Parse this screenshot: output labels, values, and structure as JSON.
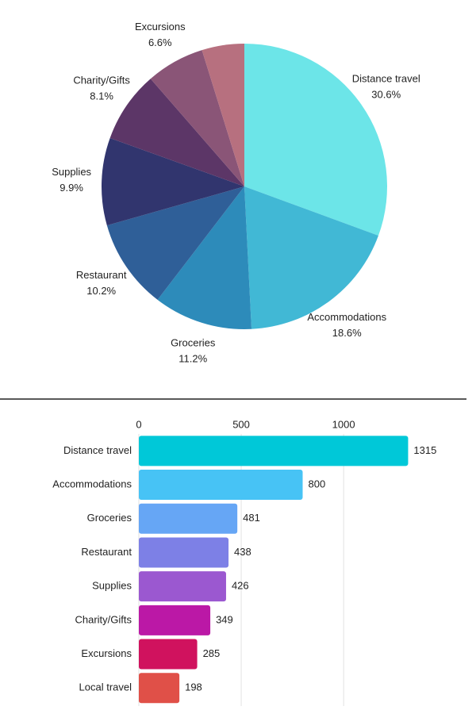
{
  "chart_data": [
    {
      "type": "pie",
      "categories": [
        "Distance travel",
        "Accommodations",
        "Groceries",
        "Restaurant",
        "Supplies",
        "Charity/Gifts",
        "Excursions",
        null
      ],
      "values": [
        30.6,
        18.6,
        11.2,
        10.2,
        9.9,
        8.1,
        6.6,
        4.8
      ],
      "value_labels": [
        "30.6%",
        "18.6%",
        "11.2%",
        "10.2%",
        "9.9%",
        "8.1%",
        "6.6%",
        null
      ],
      "colors": [
        "#6ce5e8",
        "#41b8d5",
        "#2d8bba",
        "#2f5f98",
        "#31356e",
        "#5c3667",
        "#8a5577",
        "#b7707f"
      ]
    },
    {
      "type": "hbar",
      "categories": [
        "Distance travel",
        "Accommodations",
        "Groceries",
        "Restaurant",
        "Supplies",
        "Charity/Gifts",
        "Excursions",
        "Local travel"
      ],
      "values": [
        1315,
        800,
        481,
        438,
        426,
        349,
        285,
        198
      ],
      "colors": [
        "#00c8d8",
        "#47c3f5",
        "#66a6f5",
        "#7d80e6",
        "#9b58d0",
        "#bb18a6",
        "#d0125e",
        "#e05048"
      ],
      "xlim": [
        0,
        1600
      ],
      "xticks": [
        0,
        500,
        1000
      ],
      "grid": true
    }
  ]
}
